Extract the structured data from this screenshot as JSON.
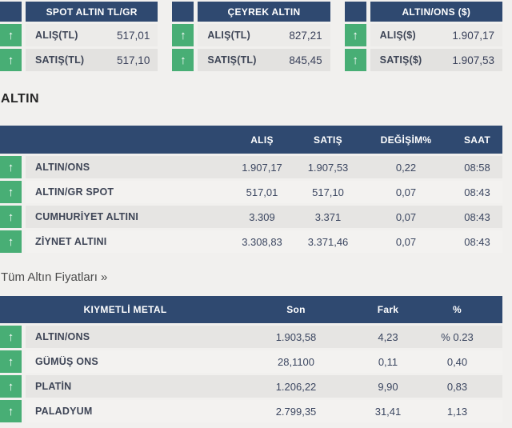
{
  "page": {
    "section_title": "ALTIN",
    "all_prices_link": "Tüm Altın Fiyatları »"
  },
  "colors": {
    "header_navy": "#2f4970",
    "up_green": "#48ae75",
    "row_light": "#f3f2f0",
    "row_dark": "#e6e5e3",
    "page_background": "#f1f0ee"
  },
  "icons": {
    "up_arrow": "↑"
  },
  "summary_cards": [
    {
      "title": "SPOT ALTIN TL/GR",
      "rows": [
        {
          "direction": "up",
          "label": "ALIŞ(TL)",
          "value": "517,01"
        },
        {
          "direction": "up",
          "label": "SATIŞ(TL)",
          "value": "517,10"
        }
      ]
    },
    {
      "title": "ÇEYREK ALTIN",
      "rows": [
        {
          "direction": "up",
          "label": "ALIŞ(TL)",
          "value": "827,21"
        },
        {
          "direction": "up",
          "label": "SATIŞ(TL)",
          "value": "845,45"
        }
      ]
    },
    {
      "title": "ALTIN/ONS ($)",
      "rows": [
        {
          "direction": "up",
          "label": "ALIŞ($)",
          "value": "1.907,17"
        },
        {
          "direction": "up",
          "label": "SATIŞ($)",
          "value": "1.907,53"
        }
      ]
    }
  ],
  "gold_table": {
    "headers": [
      "ALIŞ",
      "SATIŞ",
      "DEĞİŞİM%",
      "SAAT"
    ],
    "rows": [
      {
        "direction": "up",
        "name": "ALTIN/ONS",
        "alis": "1.907,17",
        "satis": "1.907,53",
        "degisim": "0,22",
        "saat": "08:58"
      },
      {
        "direction": "up",
        "name": "ALTIN/GR SPOT",
        "alis": "517,01",
        "satis": "517,10",
        "degisim": "0,07",
        "saat": "08:43"
      },
      {
        "direction": "up",
        "name": "CUMHURİYET ALTINI",
        "alis": "3.309",
        "satis": "3.371",
        "degisim": "0,07",
        "saat": "08:43"
      },
      {
        "direction": "up",
        "name": "ZİYNET ALTINI",
        "alis": "3.308,83",
        "satis": "3.371,46",
        "degisim": "0,07",
        "saat": "08:43"
      }
    ]
  },
  "metals_table": {
    "headers": [
      "KIYMETLİ METAL",
      "Son",
      "Fark",
      "%"
    ],
    "rows": [
      {
        "direction": "up",
        "name": "ALTIN/ONS",
        "son": "1.903,58",
        "fark": "4,23",
        "pct": "% 0.23"
      },
      {
        "direction": "up",
        "name": "GÜMÜŞ ONS",
        "son": "28,1100",
        "fark": "0,11",
        "pct": "0,40"
      },
      {
        "direction": "up",
        "name": "PLATİN",
        "son": "1.206,22",
        "fark": "9,90",
        "pct": "0,83"
      },
      {
        "direction": "up",
        "name": "PALADYUM",
        "son": "2.799,35",
        "fark": "31,41",
        "pct": "1,13"
      }
    ]
  }
}
